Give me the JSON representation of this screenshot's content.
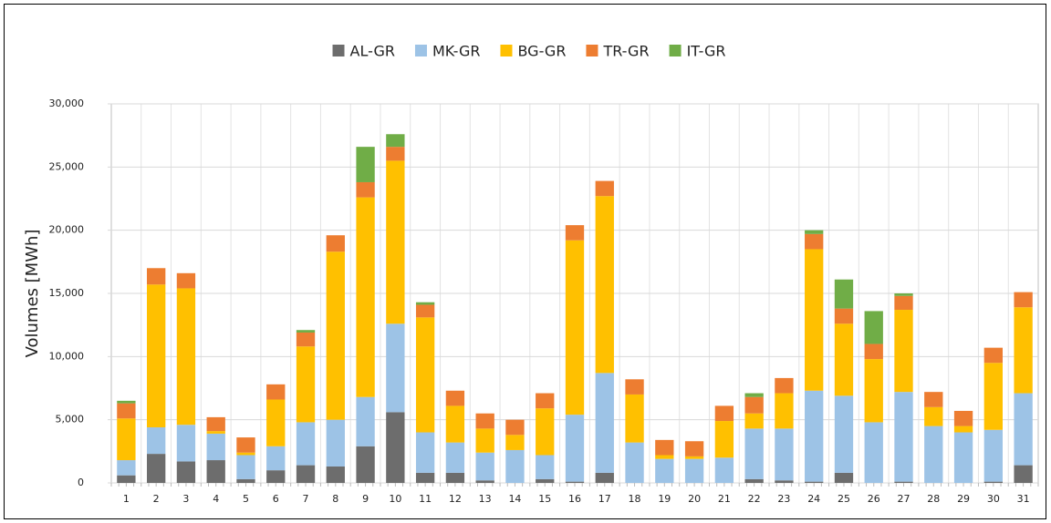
{
  "chart_data": {
    "type": "stacked_bar",
    "y_label": "Volumes [MWh]",
    "categories": [
      "1",
      "2",
      "3",
      "4",
      "5",
      "6",
      "7",
      "8",
      "9",
      "10",
      "11",
      "12",
      "13",
      "14",
      "15",
      "16",
      "17",
      "18",
      "19",
      "20",
      "21",
      "22",
      "23",
      "24",
      "25",
      "26",
      "27",
      "28",
      "29",
      "30",
      "31"
    ],
    "series": [
      {
        "name": "AL-GR",
        "color": "#6d6d6d",
        "values": [
          600,
          2300,
          1700,
          1800,
          300,
          1000,
          1400,
          1300,
          2900,
          5600,
          800,
          800,
          200,
          0,
          300,
          100,
          800,
          0,
          0,
          0,
          0,
          300,
          200,
          100,
          800,
          0,
          100,
          0,
          0,
          100,
          1400
        ]
      },
      {
        "name": "MK-GR",
        "color": "#9dc3e6",
        "values": [
          1200,
          2100,
          2900,
          2100,
          1900,
          1900,
          3400,
          3700,
          3900,
          7000,
          3200,
          2400,
          2200,
          2600,
          1900,
          5300,
          7900,
          3200,
          1900,
          1900,
          2000,
          4000,
          4100,
          7200,
          6100,
          4800,
          7100,
          4500,
          4000,
          4100,
          5700
        ]
      },
      {
        "name": "BG-GR",
        "color": "#ffc000",
        "values": [
          3300,
          11300,
          10800,
          200,
          200,
          3700,
          6000,
          13300,
          15800,
          12900,
          9100,
          2900,
          1900,
          1200,
          3700,
          13800,
          14000,
          3800,
          300,
          200,
          2900,
          1200,
          2800,
          11200,
          5700,
          5000,
          6500,
          1500,
          500,
          5300,
          6800
        ]
      },
      {
        "name": "TR-GR",
        "color": "#ed7d31",
        "values": [
          1200,
          1300,
          1200,
          1100,
          1200,
          1200,
          1100,
          1300,
          1200,
          1100,
          1000,
          1200,
          1200,
          1200,
          1200,
          1200,
          1200,
          1200,
          1200,
          1200,
          1200,
          1300,
          1200,
          1200,
          1200,
          1200,
          1100,
          1200,
          1200,
          1200,
          1200
        ]
      },
      {
        "name": "IT-GR",
        "color": "#70ad47",
        "values": [
          200,
          0,
          0,
          0,
          0,
          0,
          200,
          0,
          2800,
          1000,
          200,
          0,
          0,
          0,
          0,
          0,
          0,
          0,
          0,
          0,
          0,
          300,
          0,
          300,
          2300,
          2600,
          200,
          0,
          0,
          0,
          0
        ]
      }
    ],
    "ylim": [
      0,
      30000
    ],
    "yticks": [
      {
        "value": 0,
        "label": "0"
      },
      {
        "value": 5000,
        "label": "5,000"
      },
      {
        "value": 10000,
        "label": "10,000"
      },
      {
        "value": 15000,
        "label": "15,000"
      },
      {
        "value": 20000,
        "label": "20,000"
      },
      {
        "value": 25000,
        "label": "25,000"
      },
      {
        "value": 30000,
        "label": "30,000"
      }
    ],
    "grid": true,
    "legend": "top"
  }
}
